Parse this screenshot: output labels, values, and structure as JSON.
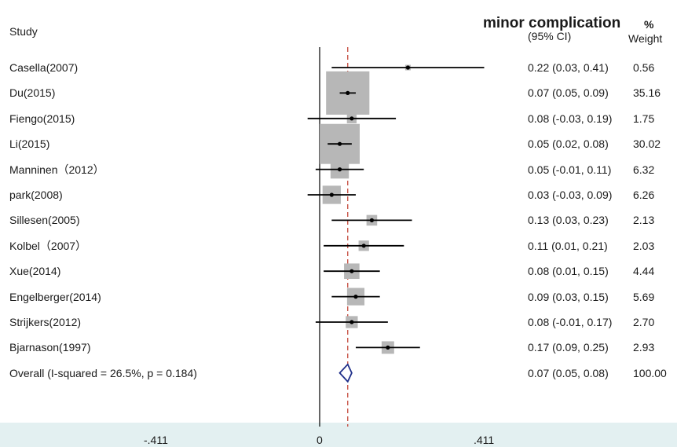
{
  "header": {
    "study": "Study",
    "outcome": "minor complication",
    "percent": "%",
    "ci": "(95% CI)",
    "weight": "Weight"
  },
  "overall_label": "Overall  (I-squared = 26.5%, p = 0.184)",
  "chart_data": {
    "type": "forest",
    "title": "minor complication",
    "null_line": 0,
    "overall_line": 0.07,
    "xticks": [
      "-.411",
      "0",
      ".411"
    ],
    "xlim": [
      -0.411,
      0.411
    ],
    "studies": [
      {
        "study": "Casella(2007)",
        "es": 0.22,
        "lo": 0.03,
        "hi": 0.41,
        "ci_text": "0.22 (0.03, 0.41)",
        "weight": "0.56",
        "w": 0.56
      },
      {
        "study": "Du(2015)",
        "es": 0.07,
        "lo": 0.05,
        "hi": 0.09,
        "ci_text": "0.07 (0.05, 0.09)",
        "weight": "35.16",
        "w": 35.16
      },
      {
        "study": "Fiengo(2015)",
        "es": 0.08,
        "lo": -0.03,
        "hi": 0.19,
        "ci_text": "0.08 (-0.03, 0.19)",
        "weight": "1.75",
        "w": 1.75
      },
      {
        "study": "Li(2015)",
        "es": 0.05,
        "lo": 0.02,
        "hi": 0.08,
        "ci_text": "0.05 (0.02, 0.08)",
        "weight": "30.02",
        "w": 30.02
      },
      {
        "study": "Manninen（2012）",
        "es": 0.05,
        "lo": -0.01,
        "hi": 0.11,
        "ci_text": "0.05 (-0.01, 0.11)",
        "weight": "6.32",
        "w": 6.32
      },
      {
        "study": "park(2008)",
        "es": 0.03,
        "lo": -0.03,
        "hi": 0.09,
        "ci_text": "0.03 (-0.03, 0.09)",
        "weight": "6.26",
        "w": 6.26
      },
      {
        "study": "Sillesen(2005)",
        "es": 0.13,
        "lo": 0.03,
        "hi": 0.23,
        "ci_text": "0.13 (0.03, 0.23)",
        "weight": "2.13",
        "w": 2.13
      },
      {
        "study": "Kolbel（2007）",
        "es": 0.11,
        "lo": 0.01,
        "hi": 0.21,
        "ci_text": "0.11 (0.01, 0.21)",
        "weight": "2.03",
        "w": 2.03
      },
      {
        "study": "Xue(2014)",
        "es": 0.08,
        "lo": 0.01,
        "hi": 0.15,
        "ci_text": "0.08 (0.01, 0.15)",
        "weight": "4.44",
        "w": 4.44
      },
      {
        "study": "Engelberger(2014)",
        "es": 0.09,
        "lo": 0.03,
        "hi": 0.15,
        "ci_text": "0.09 (0.03, 0.15)",
        "weight": "5.69",
        "w": 5.69
      },
      {
        "study": "Strijkers(2012)",
        "es": 0.08,
        "lo": -0.01,
        "hi": 0.17,
        "ci_text": "0.08 (-0.01, 0.17)",
        "weight": "2.70",
        "w": 2.7
      },
      {
        "study": "Bjarnason(1997)",
        "es": 0.17,
        "lo": 0.09,
        "hi": 0.25,
        "ci_text": "0.17 (0.09, 0.25)",
        "weight": "2.93",
        "w": 2.93
      }
    ],
    "overall": {
      "es": 0.07,
      "lo": 0.05,
      "hi": 0.08,
      "ci_text": "0.07 (0.05, 0.08)",
      "weight": "100.00"
    },
    "colors": {
      "box": "#b7b7b7",
      "line": "#000000",
      "diamond": "#1f2f8a",
      "overall_line": "#c0392b",
      "axis_band": "#e3f0f1"
    }
  }
}
